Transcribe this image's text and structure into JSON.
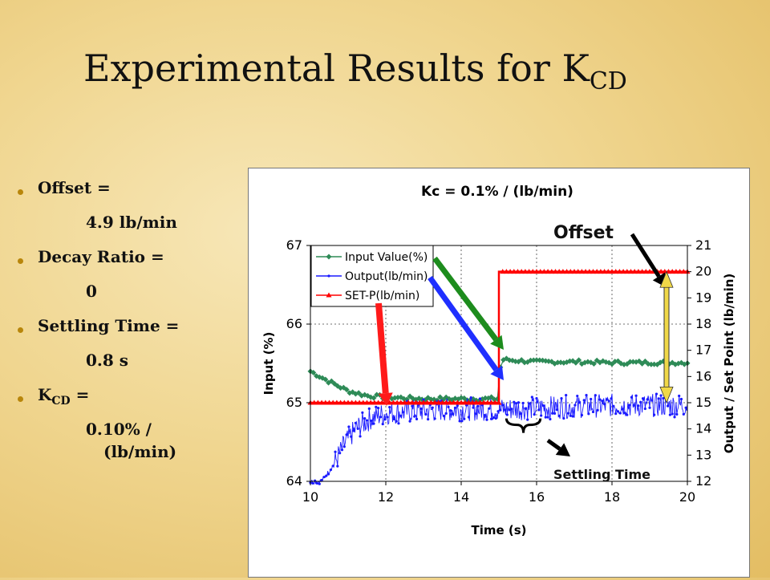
{
  "title": {
    "main": "Experimental Results for K",
    "sub": "CD"
  },
  "bullets": [
    {
      "label": "Offset =",
      "value": "4.9 lb/min"
    },
    {
      "label": "Decay Ratio =",
      "value": "0"
    },
    {
      "label": "Settling Time =",
      "value": "0.8 s"
    },
    {
      "label_main": "K",
      "label_sub": "CD",
      "label_tail": " =",
      "value": "0.10% /",
      "value2": "(lb/min)"
    }
  ],
  "chart_data": {
    "type": "line",
    "title": "Kc = 0.1% / (lb/min)",
    "xlabel": "Time (s)",
    "ylabel_left": "Input (%)",
    "ylabel_right": "Output / Set Point (lb/min)",
    "xlim": [
      10,
      20
    ],
    "ylim_left": [
      64,
      67
    ],
    "ylim_right": [
      12,
      21
    ],
    "x_ticks": [
      "10",
      "12",
      "14",
      "16",
      "18",
      "20"
    ],
    "y_left_ticks": [
      "64",
      "65",
      "66",
      "67"
    ],
    "y_right_ticks": [
      "12",
      "13",
      "14",
      "15",
      "16",
      "17",
      "18",
      "19",
      "20",
      "21"
    ],
    "grid": true,
    "legend_position": "top-left",
    "series": [
      {
        "name": "Input Value(%)",
        "axis": "left",
        "color": "#2e8b57",
        "marker": "diamond",
        "x": [
          10.0,
          10.5,
          11.0,
          11.5,
          12.0,
          13.0,
          14.0,
          15.0,
          15.05,
          16.0,
          17.0,
          18.0,
          19.0,
          20.0
        ],
        "y": [
          65.4,
          65.27,
          65.15,
          65.09,
          65.07,
          65.05,
          65.05,
          65.05,
          65.55,
          65.52,
          65.52,
          65.51,
          65.51,
          65.51
        ]
      },
      {
        "name": "Output(lb/min)",
        "axis": "right",
        "color": "#1a1aff",
        "marker": "dot",
        "x": [
          10.0,
          10.3,
          10.6,
          10.9,
          11.2,
          11.6,
          12.0,
          13.0,
          14.0,
          15.0,
          16.0,
          17.0,
          18.0,
          19.0,
          20.0
        ],
        "y": [
          12.0,
          12.0,
          12.6,
          13.4,
          14.0,
          14.4,
          14.6,
          14.7,
          14.75,
          14.75,
          14.8,
          14.85,
          14.9,
          14.9,
          14.9
        ]
      },
      {
        "name": "SET-P(lb/min)",
        "axis": "right",
        "color": "#ff0000",
        "marker": "triangle",
        "x": [
          10.0,
          15.0,
          15.0,
          20.0
        ],
        "y": [
          15.0,
          15.0,
          20.0,
          20.0
        ]
      }
    ],
    "annotations": [
      "Offset",
      "Settling Time"
    ],
    "annotation_colors": {
      "red_arrow": "#ff1a1a",
      "blue_arrow": "#1f2fff",
      "green_arrow": "#1d8c1d",
      "offset_arrow": "#f0d848"
    }
  }
}
